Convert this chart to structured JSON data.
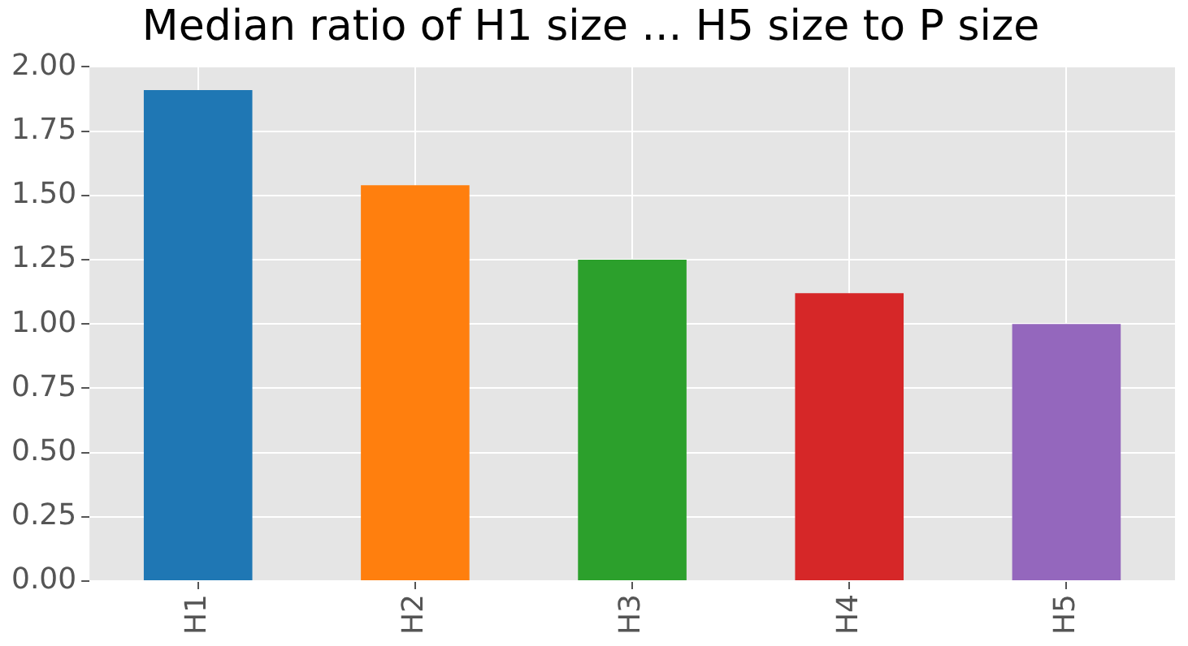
{
  "chart_data": {
    "type": "bar",
    "title": "Median ratio of H1 size ... H5 size to P size",
    "categories": [
      "H1",
      "H2",
      "H3",
      "H4",
      "H5"
    ],
    "values": [
      1.91,
      1.54,
      1.25,
      1.12,
      1.0
    ],
    "colors": [
      "#1f77b4",
      "#ff7f0e",
      "#2ca02c",
      "#d62728",
      "#9467bd"
    ],
    "ylim": [
      0,
      2
    ],
    "yticks": [
      {
        "value": 0,
        "label": "0.00"
      },
      {
        "value": 0.25,
        "label": "0.25"
      },
      {
        "value": 0.5,
        "label": "0.50"
      },
      {
        "value": 0.75,
        "label": "0.75"
      },
      {
        "value": 1,
        "label": "1.00"
      },
      {
        "value": 1.25,
        "label": "1.25"
      },
      {
        "value": 1.5,
        "label": "1.50"
      },
      {
        "value": 1.75,
        "label": "1.75"
      },
      {
        "value": 2,
        "label": "2.00"
      }
    ],
    "grid": true,
    "legend": false
  }
}
